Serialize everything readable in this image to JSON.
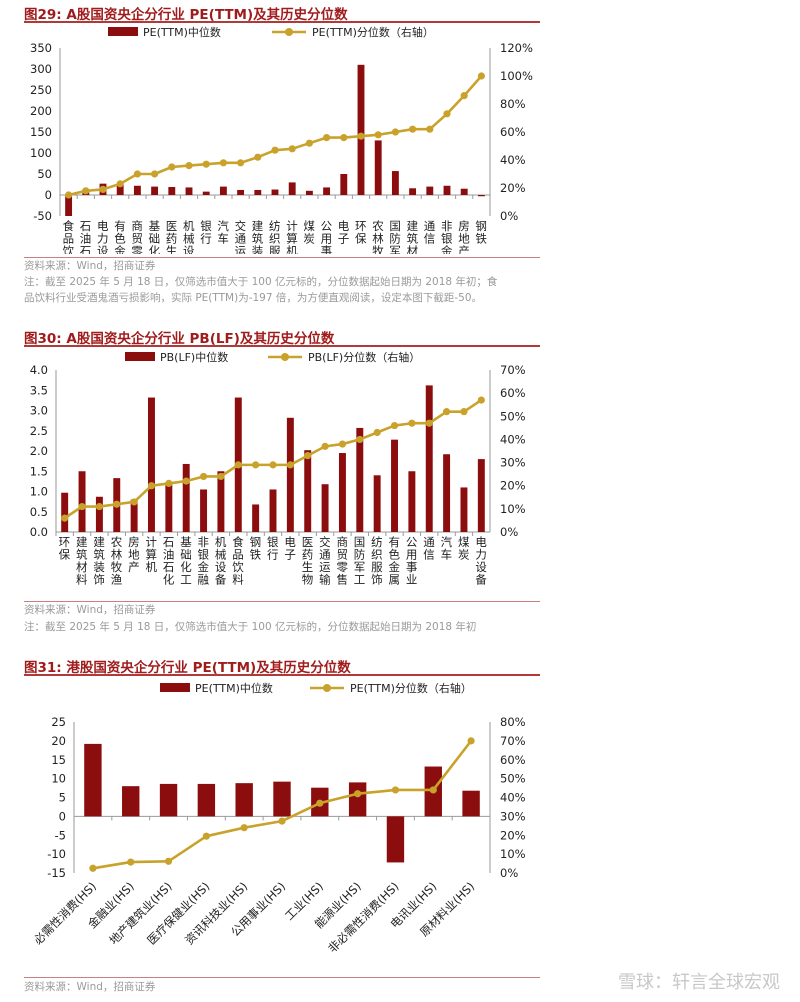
{
  "colors": {
    "bar": "#8b0d0d",
    "line": "#c9a22c",
    "title": "#a01c1c",
    "note": "#9a9a9a"
  },
  "fig29": {
    "title": "图29: A股国资央企分行业 PE(TTM)及其历史分位数",
    "source": "资料来源：Wind，招商证券",
    "note1": "注：截至 2025 年 5 月 18 日，仅筛选市值大于 100 亿元标的，分位数据起始日期为 2018 年初；食",
    "note2": "品饮料行业受酒鬼酒亏损影响，实际 PE(TTM)为-197 倍，为方便直观阅读，设定本图下截距-50。"
  },
  "fig30": {
    "title": "图30: A股国资央企分行业 PB(LF)及其历史分位数",
    "source": "资料来源：Wind，招商证券",
    "note1": "注：截至 2025 年 5 月 18 日，仅筛选市值大于 100 亿元标的，分位数据起始日期为 2018 年初"
  },
  "fig31": {
    "title": "图31: 港股国资央企分行业 PE(TTM)及其历史分位数",
    "source": "资料来源：Wind，招商证券"
  },
  "watermark": "雪球：轩言全球宏观",
  "chart_data": [
    {
      "type": "bar",
      "title": "A股国资央企分行业 PE(TTM)及其历史分位数",
      "legend": [
        "PE(TTM)中位数",
        "PE(TTM)分位数（右轴）"
      ],
      "categories": [
        "食品饮料",
        "石油石化",
        "电力设备",
        "有色金属",
        "商贸零售",
        "基础化工",
        "医药生物",
        "机械设备",
        "银行",
        "汽车",
        "交通运输",
        "建筑装饰",
        "纺织服饰",
        "计算机",
        "煤炭",
        "公用事业",
        "电子",
        "环保",
        "农林牧渔",
        "国防军工",
        "建筑材料",
        "通信",
        "非银金融",
        "房地产",
        "钢铁"
      ],
      "yleft": {
        "ticks": [
          -50,
          0,
          50,
          100,
          150,
          200,
          250,
          300,
          350
        ],
        "tick_labels": [
          "-50",
          "0",
          "50",
          "100",
          "150",
          "200",
          "250",
          "300",
          "350"
        ],
        "ylim": [
          -50,
          350
        ]
      },
      "yright": {
        "ticks": [
          0,
          20,
          40,
          60,
          80,
          100,
          120
        ],
        "tick_labels": [
          "0%",
          "20%",
          "40%",
          "60%",
          "80%",
          "100%",
          "120%"
        ],
        "ylim": [
          0,
          120
        ]
      },
      "series": [
        {
          "name": "PE(TTM)中位数",
          "axis": "left",
          "kind": "bar",
          "values": [
            -50,
            12,
            27,
            25,
            22,
            20,
            19,
            18,
            8,
            20,
            12,
            12,
            13,
            30,
            10,
            18,
            50,
            310,
            130,
            57,
            16,
            20,
            22,
            15,
            -3
          ]
        },
        {
          "name": "PE(TTM)分位数（右轴）",
          "axis": "right",
          "kind": "line",
          "values": [
            15,
            18,
            19,
            23,
            30,
            30,
            35,
            36,
            37,
            38,
            38,
            42,
            47,
            48,
            52,
            56,
            56,
            57,
            58,
            60,
            62,
            62,
            73,
            86,
            100
          ]
        }
      ]
    },
    {
      "type": "bar",
      "title": "A股国资央企分行业 PB(LF)及其历史分位数",
      "legend": [
        "PB(LF)中位数",
        "PB(LF)分位数（右轴）"
      ],
      "categories": [
        "环保",
        "建筑材料",
        "建筑装饰",
        "农林牧渔",
        "房地产",
        "计算机",
        "石油石化",
        "基础化工",
        "非银金融",
        "机械设备",
        "食品饮料",
        "钢铁",
        "银行",
        "电子",
        "医药生物",
        "交通运输",
        "商贸零售",
        "国防军工",
        "纺织服饰",
        "有色金属",
        "公用事业",
        "通信",
        "汽车",
        "煤炭",
        "电力设备"
      ],
      "yleft": {
        "ticks": [
          0,
          0.5,
          1,
          1.5,
          2,
          2.5,
          3,
          3.5,
          4
        ],
        "tick_labels": [
          "0.0",
          "0.5",
          "1.0",
          "1.5",
          "2.0",
          "2.5",
          "3.0",
          "3.5",
          "4.0"
        ],
        "ylim": [
          0,
          4
        ]
      },
      "yright": {
        "ticks": [
          0,
          10,
          20,
          30,
          40,
          50,
          60,
          70
        ],
        "tick_labels": [
          "0%",
          "10%",
          "20%",
          "30%",
          "40%",
          "50%",
          "60%",
          "70%"
        ],
        "ylim": [
          0,
          70
        ]
      },
      "series": [
        {
          "name": "PB(LF)中位数",
          "axis": "left",
          "kind": "bar",
          "values": [
            0.97,
            1.5,
            0.87,
            1.33,
            0.8,
            3.32,
            1.22,
            1.68,
            1.05,
            1.5,
            3.32,
            0.68,
            1.05,
            2.82,
            2.02,
            1.18,
            1.95,
            2.57,
            1.4,
            2.28,
            1.5,
            3.62,
            1.92,
            1.1,
            1.8
          ]
        },
        {
          "name": "PB(LF)分位数（右轴）",
          "axis": "right",
          "kind": "line",
          "values": [
            6,
            11,
            11,
            12,
            13,
            20,
            21,
            22,
            24,
            24,
            29,
            29,
            29,
            29,
            33,
            37,
            38,
            40,
            43,
            46,
            47,
            47,
            52,
            52,
            57
          ]
        }
      ]
    },
    {
      "type": "bar",
      "title": "港股国资央企分行业 PE(TTM)及其历史分位数",
      "legend": [
        "PE(TTM)中位数",
        "PE(TTM)分位数（右轴）"
      ],
      "categories": [
        "必需性消费(HS)",
        "金融业(HS)",
        "地产建筑业(HS)",
        "医疗保健业(HS)",
        "资讯科技业(HS)",
        "公用事业(HS)",
        "工业(HS)",
        "能源业(HS)",
        "非必需性消费(HS)",
        "电讯业(HS)",
        "原材料业(HS)"
      ],
      "yleft": {
        "ticks": [
          -15,
          -10,
          -5,
          0,
          5,
          10,
          15,
          20,
          25
        ],
        "tick_labels": [
          "-15",
          "-10",
          "-5",
          "0",
          "5",
          "10",
          "15",
          "20",
          "25"
        ],
        "ylim": [
          -15,
          25
        ]
      },
      "yright": {
        "ticks": [
          0,
          10,
          20,
          30,
          40,
          50,
          60,
          70,
          80
        ],
        "tick_labels": [
          "0%",
          "10%",
          "20%",
          "30%",
          "40%",
          "50%",
          "60%",
          "70%",
          "80%"
        ],
        "ylim": [
          0,
          80
        ]
      },
      "series": [
        {
          "name": "PE(TTM)中位数",
          "axis": "left",
          "kind": "bar",
          "values": [
            19.2,
            8,
            8.6,
            8.6,
            8.8,
            9.2,
            7.6,
            9,
            -12.2,
            13.2,
            6.8
          ]
        },
        {
          "name": "PE(TTM)分位数（右轴）",
          "axis": "right",
          "kind": "line",
          "values": [
            2.5,
            5.8,
            6.2,
            19.5,
            24,
            27.5,
            37,
            42,
            44,
            44,
            70
          ]
        }
      ]
    }
  ]
}
